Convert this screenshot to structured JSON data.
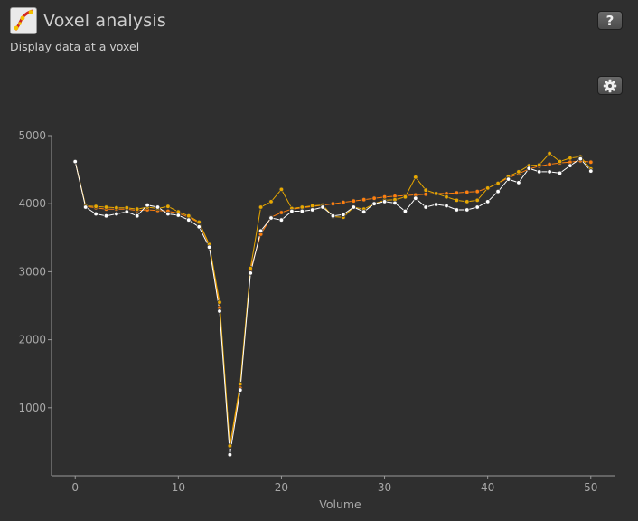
{
  "header": {
    "title": "Voxel analysis",
    "subtitle": "Display data at a voxel",
    "help_label": "?",
    "app_icon": "voxel-analysis-app-icon",
    "settings_icon": "gear-icon"
  },
  "colors": {
    "background": "#2f2f2f",
    "axis": "#9a9a9a",
    "series_orange": "#ff7f0e",
    "series_yellow": "#e8a800",
    "series_white": "#ffffff"
  },
  "chart_data": {
    "type": "line",
    "title": "",
    "xlabel": "Volume",
    "ylabel": "",
    "xlim": [
      -2.3,
      52.3
    ],
    "ylim": [
      0,
      5000
    ],
    "xticks": [
      0,
      10,
      20,
      30,
      40,
      50
    ],
    "yticks": [
      1000,
      2000,
      3000,
      4000,
      5000
    ],
    "grid": false,
    "x": [
      0,
      1,
      2,
      3,
      4,
      5,
      6,
      7,
      8,
      9,
      10,
      11,
      12,
      13,
      14,
      15,
      16,
      17,
      18,
      19,
      20,
      21,
      22,
      23,
      24,
      25,
      26,
      27,
      28,
      29,
      30,
      31,
      32,
      33,
      34,
      35,
      36,
      37,
      38,
      39,
      40,
      41,
      42,
      43,
      44,
      45,
      46,
      47,
      48,
      49,
      50
    ],
    "series": [
      {
        "color": "#ff7f0e",
        "values": [
          4620,
          3960,
          3940,
          3920,
          3920,
          3920,
          3900,
          3910,
          3900,
          3890,
          3860,
          3800,
          3720,
          3390,
          2470,
          430,
          1290,
          3030,
          3550,
          3800,
          3870,
          3920,
          3940,
          3960,
          3980,
          4000,
          4020,
          4040,
          4060,
          4080,
          4100,
          4110,
          4120,
          4130,
          4140,
          4150,
          4150,
          4160,
          4170,
          4180,
          4230,
          4300,
          4380,
          4440,
          4510,
          4550,
          4580,
          4600,
          4610,
          4630,
          4610
        ]
      },
      {
        "color": "#e8a800",
        "values": [
          4620,
          3970,
          3960,
          3950,
          3940,
          3940,
          3920,
          3950,
          3930,
          3960,
          3880,
          3820,
          3730,
          3400,
          2550,
          440,
          1350,
          3050,
          3950,
          4030,
          4210,
          3930,
          3950,
          3970,
          3980,
          3810,
          3800,
          3950,
          3920,
          4000,
          4050,
          4060,
          4100,
          4390,
          4200,
          4150,
          4100,
          4050,
          4030,
          4050,
          4230,
          4300,
          4400,
          4470,
          4560,
          4570,
          4740,
          4620,
          4670,
          4690,
          4510
        ]
      },
      {
        "color": "#ffffff",
        "values": [
          4620,
          3950,
          3850,
          3820,
          3850,
          3880,
          3820,
          3980,
          3950,
          3850,
          3830,
          3760,
          3660,
          3360,
          2420,
          310,
          1260,
          2980,
          3600,
          3790,
          3760,
          3890,
          3890,
          3910,
          3950,
          3820,
          3840,
          3950,
          3880,
          4000,
          4030,
          4010,
          3890,
          4080,
          3950,
          3990,
          3970,
          3910,
          3910,
          3950,
          4030,
          4180,
          4360,
          4310,
          4520,
          4470,
          4470,
          4450,
          4560,
          4660,
          4480
        ]
      }
    ]
  }
}
